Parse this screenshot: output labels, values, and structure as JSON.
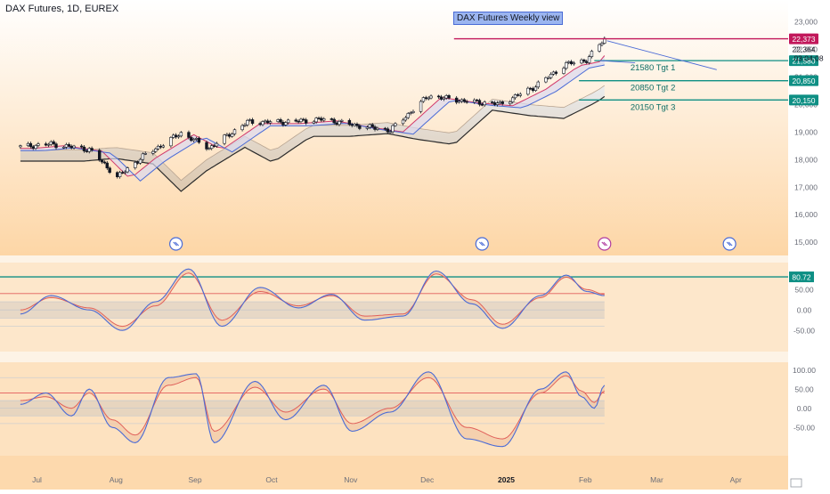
{
  "header": {
    "symbol_title": "DAX Futures, 1D, EUREX",
    "badge": "DAX Futures Weekly view"
  },
  "colors": {
    "background_top": "#ffffff",
    "background_bottom": "#fdd6a6",
    "candle_up": "#ffffff",
    "candle_outline": "#131722",
    "ema_fast": "#d23a6a",
    "ema_mid": "#4a6bd6",
    "ema_slow_band": "#e8ddd0",
    "target_line": "#0e8f84",
    "resistance_line": "#c2185b",
    "osc_fast": "#4a6bd6",
    "osc_slow": "#e0605a",
    "osc_fill": "#f2c9a8",
    "osc_level": "#cfcfcf",
    "osc_high_level": "#0e8f84",
    "osc_mid_level": "#e25b5b"
  },
  "chart_data": [
    {
      "type": "candlestick",
      "title": "DAX Futures, 1D, EUREX",
      "x_labels": [
        "Jul",
        "Aug",
        "Sep",
        "Oct",
        "Nov",
        "Dec",
        "2025",
        "Feb",
        "Mar",
        "Apr"
      ],
      "y_ticks": [
        "23,000",
        "22,000",
        "21,000",
        "20,000",
        "19,000",
        "18,000",
        "17,000",
        "16,000",
        "15,000"
      ],
      "ylim": [
        14600,
        23200
      ],
      "close_path": [
        {
          "date": "2024-06-28",
          "close": 18450
        },
        {
          "date": "2024-07-10",
          "close": 18550
        },
        {
          "date": "2024-07-25",
          "close": 18350
        },
        {
          "date": "2024-08-05",
          "close": 17350
        },
        {
          "date": "2024-08-15",
          "close": 18100
        },
        {
          "date": "2024-08-30",
          "close": 18950
        },
        {
          "date": "2024-09-10",
          "close": 18400
        },
        {
          "date": "2024-09-25",
          "close": 19350
        },
        {
          "date": "2024-10-10",
          "close": 19350
        },
        {
          "date": "2024-10-25",
          "close": 19450
        },
        {
          "date": "2024-11-05",
          "close": 19250
        },
        {
          "date": "2024-11-20",
          "close": 19050
        },
        {
          "date": "2024-12-05",
          "close": 20300
        },
        {
          "date": "2024-12-20",
          "close": 20100
        },
        {
          "date": "2025-01-02",
          "close": 20000
        },
        {
          "date": "2025-01-15",
          "close": 20600
        },
        {
          "date": "2025-01-28",
          "close": 21450
        },
        {
          "date": "2025-02-05",
          "close": 21600
        },
        {
          "date": "2025-02-12",
          "close": 22370
        }
      ],
      "horizontal_levels": [
        {
          "value": 22373,
          "label": "22,373",
          "kind": "resistance"
        },
        {
          "value": 21580,
          "label": "21,580",
          "annotation": "21580 Tgt 1",
          "kind": "target"
        },
        {
          "value": 20850,
          "label": "20,850",
          "annotation": "20850 Tgt 2",
          "kind": "target"
        },
        {
          "value": 20150,
          "label": "20,150",
          "annotation": "20150 Tgt 3",
          "kind": "target"
        }
      ],
      "price_readout": {
        "price": "22,364",
        "countdown": "03:04:08"
      }
    },
    {
      "type": "line",
      "name": "oscillator-1",
      "y_ticks": [
        "50.00",
        "0.00",
        "-50.00"
      ],
      "ylim": [
        -80,
        120
      ],
      "levels": [
        80.72,
        40,
        20,
        0,
        -20,
        -40
      ],
      "level_label": "80.72",
      "fast_series": [
        {
          "date": "2024-06-28",
          "value": -10
        },
        {
          "date": "2024-07-10",
          "value": 35
        },
        {
          "date": "2024-07-25",
          "value": 0
        },
        {
          "date": "2024-08-07",
          "value": -50
        },
        {
          "date": "2024-08-20",
          "value": 20
        },
        {
          "date": "2024-09-02",
          "value": 100
        },
        {
          "date": "2024-09-15",
          "value": -40
        },
        {
          "date": "2024-09-30",
          "value": 55
        },
        {
          "date": "2024-10-15",
          "value": 5
        },
        {
          "date": "2024-10-28",
          "value": 38
        },
        {
          "date": "2024-11-10",
          "value": -25
        },
        {
          "date": "2024-11-25",
          "value": -15
        },
        {
          "date": "2024-12-08",
          "value": 95
        },
        {
          "date": "2024-12-22",
          "value": 15
        },
        {
          "date": "2025-01-03",
          "value": -45
        },
        {
          "date": "2025-01-18",
          "value": 35
        },
        {
          "date": "2025-01-28",
          "value": 85
        },
        {
          "date": "2025-02-05",
          "value": 45
        },
        {
          "date": "2025-02-12",
          "value": 35
        }
      ],
      "slow_series": [
        {
          "date": "2024-06-28",
          "value": 0
        },
        {
          "date": "2024-07-10",
          "value": 30
        },
        {
          "date": "2024-07-25",
          "value": 5
        },
        {
          "date": "2024-08-07",
          "value": -40
        },
        {
          "date": "2024-08-20",
          "value": 10
        },
        {
          "date": "2024-09-02",
          "value": 90
        },
        {
          "date": "2024-09-15",
          "value": -25
        },
        {
          "date": "2024-09-30",
          "value": 45
        },
        {
          "date": "2024-10-15",
          "value": 10
        },
        {
          "date": "2024-10-28",
          "value": 35
        },
        {
          "date": "2024-11-10",
          "value": -15
        },
        {
          "date": "2024-11-25",
          "value": -10
        },
        {
          "date": "2024-12-08",
          "value": 88
        },
        {
          "date": "2024-12-22",
          "value": 25
        },
        {
          "date": "2025-01-03",
          "value": -35
        },
        {
          "date": "2025-01-18",
          "value": 30
        },
        {
          "date": "2025-01-28",
          "value": 80
        },
        {
          "date": "2025-02-05",
          "value": 50
        },
        {
          "date": "2025-02-12",
          "value": 38
        }
      ]
    },
    {
      "type": "line",
      "name": "oscillator-2",
      "y_ticks": [
        "100.00",
        "50.00",
        "0.00",
        "-50.00"
      ],
      "ylim": [
        -110,
        120
      ],
      "levels": [
        80,
        40,
        20,
        0,
        -20,
        -40
      ],
      "fast_series": [
        {
          "date": "2024-06-28",
          "value": 10
        },
        {
          "date": "2024-07-08",
          "value": 40
        },
        {
          "date": "2024-07-18",
          "value": -20
        },
        {
          "date": "2024-07-25",
          "value": 50
        },
        {
          "date": "2024-08-03",
          "value": -50
        },
        {
          "date": "2024-08-12",
          "value": -90
        },
        {
          "date": "2024-08-25",
          "value": 80
        },
        {
          "date": "2024-09-05",
          "value": 90
        },
        {
          "date": "2024-09-12",
          "value": -90
        },
        {
          "date": "2024-09-28",
          "value": 70
        },
        {
          "date": "2024-10-10",
          "value": -30
        },
        {
          "date": "2024-10-25",
          "value": 60
        },
        {
          "date": "2024-11-05",
          "value": -60
        },
        {
          "date": "2024-11-20",
          "value": -10
        },
        {
          "date": "2024-12-05",
          "value": 95
        },
        {
          "date": "2024-12-20",
          "value": -80
        },
        {
          "date": "2025-01-03",
          "value": -100
        },
        {
          "date": "2025-01-18",
          "value": 50
        },
        {
          "date": "2025-01-28",
          "value": 95
        },
        {
          "date": "2025-02-03",
          "value": 30
        },
        {
          "date": "2025-02-08",
          "value": 0
        },
        {
          "date": "2025-02-12",
          "value": 60
        }
      ],
      "slow_series": [
        {
          "date": "2024-06-28",
          "value": 20
        },
        {
          "date": "2024-07-08",
          "value": 30
        },
        {
          "date": "2024-07-18",
          "value": 0
        },
        {
          "date": "2024-07-25",
          "value": 40
        },
        {
          "date": "2024-08-03",
          "value": -30
        },
        {
          "date": "2024-08-12",
          "value": -70
        },
        {
          "date": "2024-08-25",
          "value": 60
        },
        {
          "date": "2024-09-05",
          "value": 80
        },
        {
          "date": "2024-09-12",
          "value": -60
        },
        {
          "date": "2024-09-28",
          "value": 55
        },
        {
          "date": "2024-10-10",
          "value": -10
        },
        {
          "date": "2024-10-25",
          "value": 50
        },
        {
          "date": "2024-11-05",
          "value": -40
        },
        {
          "date": "2024-11-20",
          "value": 0
        },
        {
          "date": "2024-12-05",
          "value": 80
        },
        {
          "date": "2024-12-20",
          "value": -50
        },
        {
          "date": "2025-01-03",
          "value": -80
        },
        {
          "date": "2025-01-18",
          "value": 40
        },
        {
          "date": "2025-01-28",
          "value": 85
        },
        {
          "date": "2025-02-03",
          "value": 45
        },
        {
          "date": "2025-02-08",
          "value": 15
        },
        {
          "date": "2025-02-12",
          "value": 45
        }
      ]
    }
  ]
}
